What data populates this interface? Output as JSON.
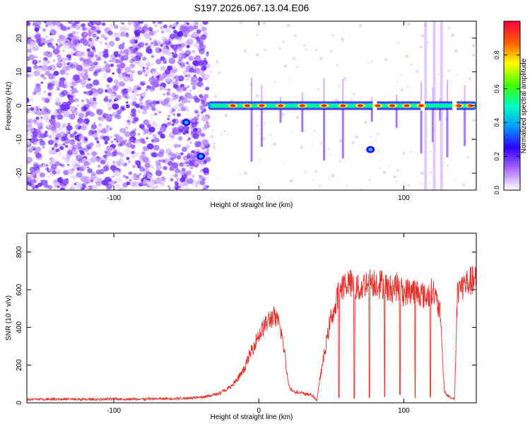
{
  "title": "S197.2026.067.13.04.E06",
  "chart_data": [
    {
      "type": "heatmap",
      "xlabel": "Height of straight line (km)",
      "ylabel": "Frequency (Hz)",
      "xlim": [
        -160,
        150
      ],
      "ylim": [
        -25,
        25
      ],
      "xticks": [
        -100,
        0,
        100
      ],
      "yticks": [
        -20,
        -10,
        0,
        10,
        20
      ],
      "colorbar": {
        "label": "Normalized spectral amplitude",
        "range": [
          0,
          1
        ],
        "ticks": [
          0.0,
          0.2,
          0.4,
          0.6,
          0.8
        ]
      },
      "noise_region_x": [
        -160,
        -35
      ],
      "signal_line": {
        "frequency_hz": 0,
        "x_start": -35,
        "x_end": 150,
        "peaks_x": [
          -18,
          -8,
          2,
          15,
          30,
          45,
          58,
          70,
          82,
          92,
          102,
          112,
          138,
          146
        ]
      },
      "vertical_streaks_x": [
        -5,
        2,
        15,
        30,
        45,
        58,
        78,
        95,
        112,
        120,
        125,
        130,
        142
      ],
      "isolated_spots": [
        {
          "x": -50,
          "freq": -5
        },
        {
          "x": -40,
          "freq": -15
        },
        {
          "x": 77,
          "freq": -13
        }
      ]
    },
    {
      "type": "line",
      "xlabel": "Height of straight line (km)",
      "ylabel": "SNR (10 * v/v)",
      "xlim": [
        -160,
        150
      ],
      "ylim": [
        0,
        900
      ],
      "xticks": [
        -100,
        0,
        100
      ],
      "yticks": [
        0,
        200,
        400,
        600,
        800
      ],
      "color": "#e8302a",
      "series": [
        {
          "name": "SNR",
          "x": [
            -160,
            -140,
            -120,
            -100,
            -80,
            -60,
            -50,
            -40,
            -35,
            -30,
            -25,
            -20,
            -15,
            -10,
            -5,
            0,
            5,
            10,
            15,
            18,
            20,
            22,
            25,
            30,
            35,
            38,
            40,
            42,
            45,
            48,
            50,
            53,
            55,
            60,
            65,
            70,
            75,
            80,
            85,
            90,
            95,
            100,
            105,
            110,
            115,
            120,
            125,
            128,
            130,
            132,
            135,
            137,
            140,
            145,
            150
          ],
          "values": [
            18,
            20,
            18,
            20,
            20,
            22,
            25,
            30,
            35,
            45,
            60,
            80,
            120,
            180,
            280,
            360,
            420,
            460,
            400,
            250,
            120,
            70,
            60,
            50,
            45,
            30,
            10,
            120,
            250,
            380,
            460,
            500,
            600,
            640,
            620,
            600,
            650,
            640,
            630,
            600,
            620,
            580,
            600,
            590,
            560,
            600,
            480,
            60,
            40,
            30,
            20,
            600,
            620,
            640,
            650
          ]
        }
      ]
    }
  ]
}
